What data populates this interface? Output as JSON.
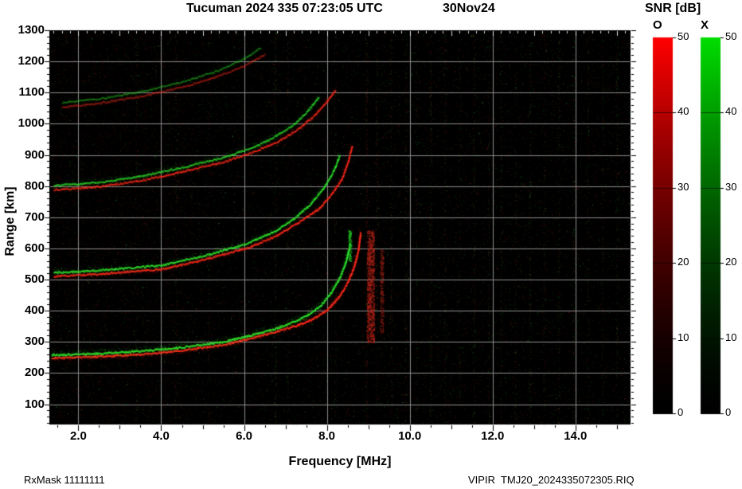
{
  "figure": {
    "title": "Tucuman 2024 335 07:23:05 UTC",
    "date_label": "30Nov24",
    "footer_left": "RxMask 11111111",
    "footer_right": "VIPIR  TMJ20_2024335072305.RIQ"
  },
  "chart_data": {
    "type": "heatmap",
    "title": "Tucuman 2024 335 07:23:05 UTC",
    "subtitle_date": "30Nov24",
    "station": "Tucuman",
    "instrument": "VIPIR",
    "xlabel": "Frequency [MHz]",
    "ylabel": "Range [km]",
    "colorbar_title": "SNR [dB]",
    "xlim": [
      1.3,
      15.33
    ],
    "ylim": [
      35,
      1300
    ],
    "x_major_ticks": [
      2,
      4,
      6,
      8,
      10,
      12,
      14
    ],
    "x_tick_labels": [
      "2.0",
      "4.0",
      "6.0",
      "8.0",
      "10.0",
      "12.0",
      "14.0"
    ],
    "y_major_ticks": [
      100,
      200,
      300,
      400,
      500,
      600,
      700,
      800,
      900,
      1000,
      1100,
      1200,
      1300
    ],
    "grid": true,
    "background": "#000000",
    "grid_color": "#8c8c8c",
    "noise_seed": 1234567,
    "colorbars": [
      {
        "label": "O",
        "mode": "ordinary",
        "top_color": "#ff0000",
        "bottom_color": "#000000",
        "ticks": [
          0,
          10,
          20,
          30,
          40,
          50
        ],
        "units": "dB"
      },
      {
        "label": "X",
        "mode": "extraordinary",
        "top_color": "#00dd00",
        "bottom_color": "#000000",
        "ticks": [
          0,
          10,
          20,
          30,
          40,
          50
        ],
        "units": "dB"
      }
    ],
    "echo_traces": [
      {
        "name": "F-region 1-hop O",
        "mode": "O",
        "color": "#ff2a1c",
        "alpha": 1.0,
        "scatter": 4,
        "points": [
          [
            1.35,
            250
          ],
          [
            2.5,
            255
          ],
          [
            3.5,
            262
          ],
          [
            4.5,
            275
          ],
          [
            5.5,
            293
          ],
          [
            6.1,
            312
          ],
          [
            6.7,
            333
          ],
          [
            7.2,
            352
          ],
          [
            7.6,
            372
          ],
          [
            8.0,
            405
          ],
          [
            8.3,
            450
          ],
          [
            8.5,
            495
          ],
          [
            8.65,
            545
          ],
          [
            8.75,
            600
          ],
          [
            8.8,
            655
          ]
        ]
      },
      {
        "name": "F-region 1-hop X",
        "mode": "X",
        "color": "#2ee42e",
        "alpha": 1.0,
        "scatter": 4,
        "points": [
          [
            1.35,
            260
          ],
          [
            2.5,
            265
          ],
          [
            3.5,
            272
          ],
          [
            4.5,
            285
          ],
          [
            5.5,
            303
          ],
          [
            6.1,
            322
          ],
          [
            6.7,
            343
          ],
          [
            7.1,
            362
          ],
          [
            7.5,
            385
          ],
          [
            7.85,
            420
          ],
          [
            8.1,
            462
          ],
          [
            8.3,
            508
          ],
          [
            8.45,
            560
          ],
          [
            8.55,
            618
          ]
        ]
      },
      {
        "name": "F-region 2-hop O",
        "mode": "O",
        "color": "#ff2a1c",
        "alpha": 0.9,
        "scatter": 3,
        "points": [
          [
            1.4,
            512
          ],
          [
            2.5,
            520
          ],
          [
            4.0,
            535
          ],
          [
            5.0,
            565
          ],
          [
            6.1,
            605
          ],
          [
            6.8,
            645
          ],
          [
            7.3,
            685
          ],
          [
            7.8,
            730
          ],
          [
            8.1,
            775
          ],
          [
            8.35,
            825
          ],
          [
            8.5,
            880
          ],
          [
            8.6,
            932
          ]
        ]
      },
      {
        "name": "F-region 2-hop X",
        "mode": "X",
        "color": "#2ee42e",
        "alpha": 0.9,
        "scatter": 3,
        "points": [
          [
            1.4,
            524
          ],
          [
            2.5,
            532
          ],
          [
            4.0,
            548
          ],
          [
            5.0,
            578
          ],
          [
            6.0,
            615
          ],
          [
            6.7,
            655
          ],
          [
            7.2,
            698
          ],
          [
            7.6,
            745
          ],
          [
            7.9,
            795
          ],
          [
            8.15,
            850
          ],
          [
            8.3,
            902
          ]
        ]
      },
      {
        "name": "F-region 3-hop O",
        "mode": "O",
        "color": "#ff2a1c",
        "alpha": 0.75,
        "scatter": 3,
        "points": [
          [
            1.4,
            790
          ],
          [
            2.5,
            800
          ],
          [
            3.5,
            820
          ],
          [
            4.5,
            848
          ],
          [
            5.5,
            880
          ],
          [
            6.2,
            910
          ],
          [
            6.8,
            945
          ],
          [
            7.3,
            985
          ],
          [
            7.7,
            1030
          ],
          [
            8.0,
            1075
          ],
          [
            8.2,
            1112
          ]
        ]
      },
      {
        "name": "F-region 3-hop X",
        "mode": "X",
        "color": "#2ee42e",
        "alpha": 0.7,
        "scatter": 3,
        "points": [
          [
            1.4,
            804
          ],
          [
            2.5,
            814
          ],
          [
            3.5,
            834
          ],
          [
            4.5,
            862
          ],
          [
            5.5,
            894
          ],
          [
            6.2,
            926
          ],
          [
            6.7,
            958
          ],
          [
            7.2,
            1000
          ],
          [
            7.5,
            1040
          ],
          [
            7.8,
            1088
          ]
        ]
      },
      {
        "name": "F-region 4-hop O",
        "mode": "O",
        "color": "#e0281c",
        "alpha": 0.45,
        "scatter": 2,
        "points": [
          [
            1.6,
            1055
          ],
          [
            2.5,
            1068
          ],
          [
            3.5,
            1090
          ],
          [
            4.5,
            1120
          ],
          [
            5.3,
            1152
          ],
          [
            6.0,
            1188
          ],
          [
            6.5,
            1226
          ]
        ]
      },
      {
        "name": "F-region 4-hop X",
        "mode": "X",
        "color": "#28cc28",
        "alpha": 0.4,
        "scatter": 2,
        "points": [
          [
            1.6,
            1070
          ],
          [
            2.6,
            1084
          ],
          [
            3.6,
            1108
          ],
          [
            4.6,
            1140
          ],
          [
            5.4,
            1174
          ],
          [
            6.0,
            1212
          ],
          [
            6.4,
            1246
          ]
        ]
      }
    ],
    "spread_streaks": [
      {
        "name": "range-spread near O critical frequency",
        "freq": 9.05,
        "width_mhz": 0.18,
        "range_min": 300,
        "range_max": 660,
        "count": 1100,
        "color": "#c8281c"
      },
      {
        "name": "secondary spread",
        "freq": 9.32,
        "width_mhz": 0.08,
        "range_min": 330,
        "range_max": 600,
        "count": 300,
        "color": "#a02218"
      },
      {
        "name": "X cusp spread",
        "freq": 8.55,
        "width_mhz": 0.07,
        "range_min": 560,
        "range_max": 660,
        "count": 160,
        "color": "#2ad42a"
      }
    ],
    "rfi_stripes": [
      {
        "freq": 3.4,
        "count": 120,
        "green_frac": 0.35
      },
      {
        "freq": 4.35,
        "count": 150,
        "green_frac": 0.3
      },
      {
        "freq": 5.15,
        "count": 130,
        "green_frac": 0.4
      },
      {
        "freq": 6.75,
        "count": 260,
        "green_frac": 0.7
      },
      {
        "freq": 7.05,
        "count": 160,
        "green_frac": 0.4
      },
      {
        "freq": 8.2,
        "count": 140,
        "green_frac": 0.5
      },
      {
        "freq": 8.95,
        "count": 300,
        "green_frac": 0.15
      },
      {
        "freq": 9.2,
        "count": 260,
        "green_frac": 0.2
      },
      {
        "freq": 9.55,
        "count": 240,
        "green_frac": 0.45
      },
      {
        "freq": 9.9,
        "count": 200,
        "green_frac": 0.55
      },
      {
        "freq": 10.15,
        "count": 170,
        "green_frac": 0.5
      },
      {
        "freq": 10.5,
        "count": 260,
        "green_frac": 0.6
      },
      {
        "freq": 10.85,
        "count": 180,
        "green_frac": 0.4
      },
      {
        "freq": 11.2,
        "count": 150,
        "green_frac": 0.55
      },
      {
        "freq": 11.55,
        "count": 220,
        "green_frac": 0.5
      },
      {
        "freq": 11.9,
        "count": 170,
        "green_frac": 0.45
      },
      {
        "freq": 12.2,
        "count": 200,
        "green_frac": 0.6
      },
      {
        "freq": 12.55,
        "count": 150,
        "green_frac": 0.5
      },
      {
        "freq": 12.9,
        "count": 230,
        "green_frac": 0.55
      },
      {
        "freq": 13.25,
        "count": 160,
        "green_frac": 0.45
      },
      {
        "freq": 13.6,
        "count": 200,
        "green_frac": 0.5
      },
      {
        "freq": 13.95,
        "count": 180,
        "green_frac": 0.55
      },
      {
        "freq": 14.3,
        "count": 220,
        "green_frac": 0.5
      },
      {
        "freq": 14.65,
        "count": 170,
        "green_frac": 0.45
      },
      {
        "freq": 15.0,
        "count": 200,
        "green_frac": 0.55
      }
    ]
  }
}
